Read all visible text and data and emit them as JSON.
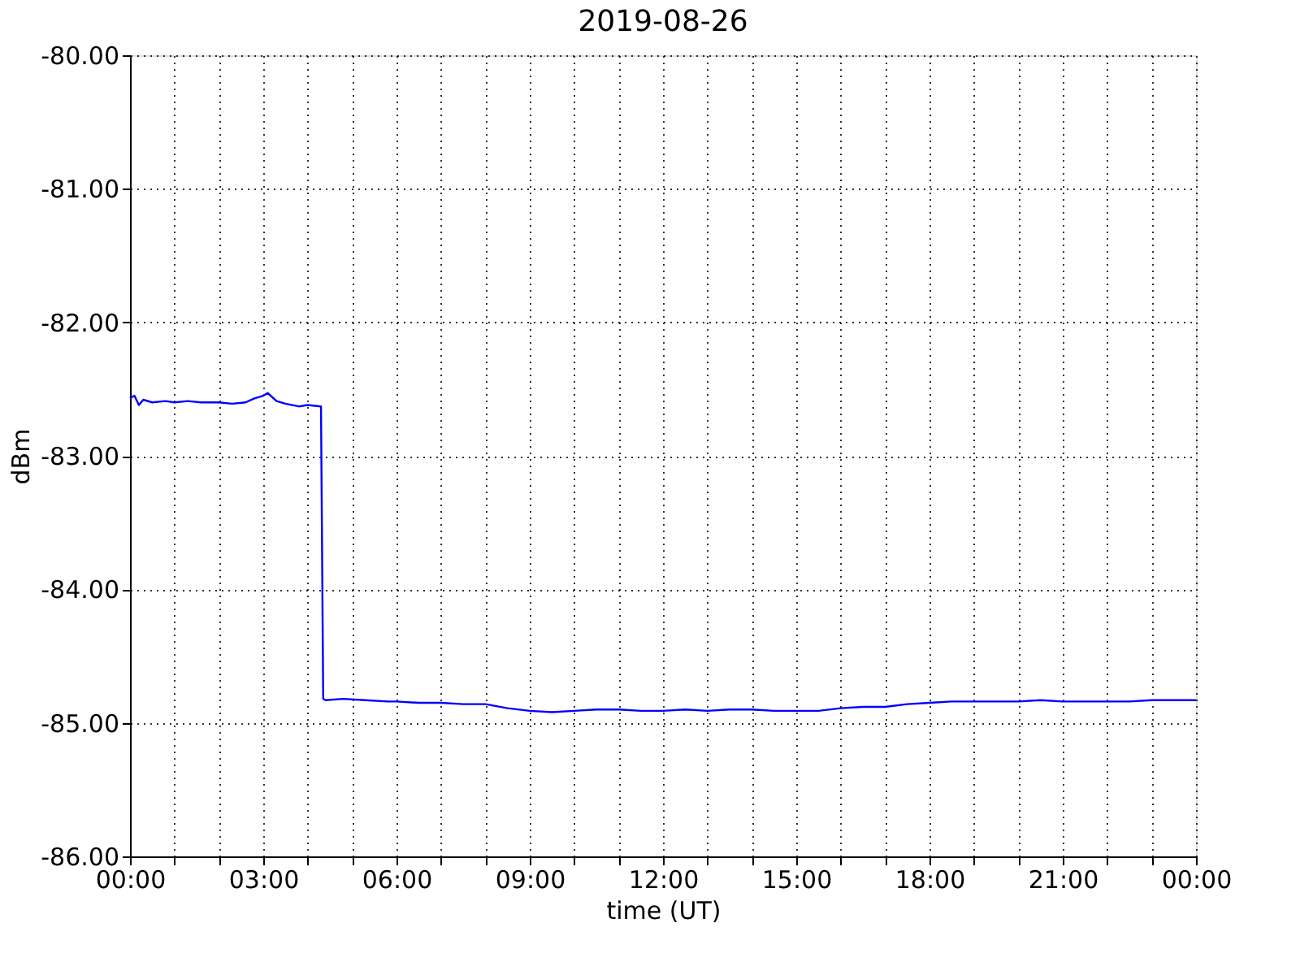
{
  "chart_data": {
    "type": "line",
    "title": "2019-08-26",
    "xlabel": "time (UT)",
    "ylabel": "dBm",
    "x": [
      0,
      0.1,
      0.2,
      0.3,
      0.5,
      0.8,
      1.0,
      1.3,
      1.6,
      2.0,
      2.3,
      2.6,
      2.8,
      3.0,
      3.1,
      3.3,
      3.5,
      3.8,
      4.0,
      4.3,
      4.35,
      4.4,
      4.8,
      5.3,
      5.8,
      6.0,
      6.5,
      7.0,
      7.5,
      8.0,
      8.5,
      9.0,
      9.5,
      10.0,
      10.5,
      11.0,
      11.5,
      12.0,
      12.5,
      13.0,
      13.5,
      14.0,
      14.5,
      15.0,
      15.5,
      16.0,
      16.5,
      17.0,
      17.5,
      18.0,
      18.5,
      19.0,
      19.5,
      20.0,
      20.5,
      21.0,
      21.5,
      22.0,
      22.5,
      23.0,
      23.5,
      24.0
    ],
    "series": [
      {
        "color": "#0000ff",
        "values": [
          -82.57,
          -82.55,
          -82.62,
          -82.58,
          -82.6,
          -82.59,
          -82.6,
          -82.59,
          -82.6,
          -82.6,
          -82.61,
          -82.6,
          -82.57,
          -82.55,
          -82.53,
          -82.59,
          -82.61,
          -82.63,
          -82.62,
          -82.63,
          -84.82,
          -84.83,
          -84.82,
          -84.83,
          -84.84,
          -84.84,
          -84.85,
          -84.85,
          -84.86,
          -84.86,
          -84.89,
          -84.91,
          -84.92,
          -84.91,
          -84.9,
          -84.9,
          -84.91,
          -84.91,
          -84.9,
          -84.91,
          -84.9,
          -84.9,
          -84.91,
          -84.91,
          -84.91,
          -84.89,
          -84.88,
          -84.88,
          -84.86,
          -84.85,
          -84.84,
          -84.84,
          -84.84,
          -84.84,
          -84.83,
          -84.84,
          -84.84,
          -84.84,
          -84.84,
          -84.83,
          -84.83,
          -84.83
        ]
      }
    ],
    "xlim": [
      0,
      24
    ],
    "ylim": [
      -86,
      -80
    ],
    "xticks": [
      {
        "value": 0,
        "label": "00:00"
      },
      {
        "value": 1,
        "label": null
      },
      {
        "value": 2,
        "label": null
      },
      {
        "value": 3,
        "label": "03:00"
      },
      {
        "value": 4,
        "label": null
      },
      {
        "value": 5,
        "label": null
      },
      {
        "value": 6,
        "label": "06:00"
      },
      {
        "value": 7,
        "label": null
      },
      {
        "value": 8,
        "label": null
      },
      {
        "value": 9,
        "label": "09:00"
      },
      {
        "value": 10,
        "label": null
      },
      {
        "value": 11,
        "label": null
      },
      {
        "value": 12,
        "label": "12:00"
      },
      {
        "value": 13,
        "label": null
      },
      {
        "value": 14,
        "label": null
      },
      {
        "value": 15,
        "label": "15:00"
      },
      {
        "value": 16,
        "label": null
      },
      {
        "value": 17,
        "label": null
      },
      {
        "value": 18,
        "label": "18:00"
      },
      {
        "value": 19,
        "label": null
      },
      {
        "value": 20,
        "label": null
      },
      {
        "value": 21,
        "label": "21:00"
      },
      {
        "value": 22,
        "label": null
      },
      {
        "value": 23,
        "label": null
      },
      {
        "value": 24,
        "label": "00:00"
      }
    ],
    "yticks": [
      {
        "value": -86,
        "label": "-86.00"
      },
      {
        "value": -85,
        "label": "-85.00"
      },
      {
        "value": -84,
        "label": "-84.00"
      },
      {
        "value": -83,
        "label": "-83.00"
      },
      {
        "value": -82,
        "label": "-82.00"
      },
      {
        "value": -81,
        "label": "-81.00"
      },
      {
        "value": -80,
        "label": "-80.00"
      }
    ],
    "grid": true,
    "marker": "none",
    "line_style": "solid"
  }
}
